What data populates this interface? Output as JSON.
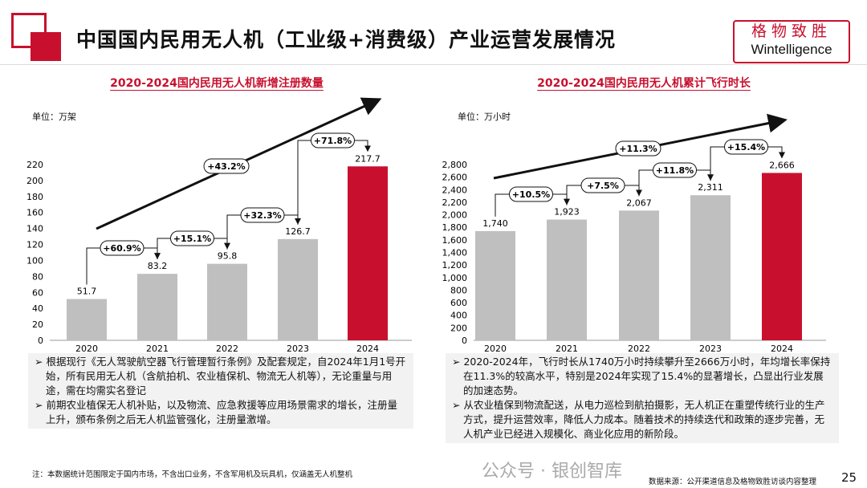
{
  "header": {
    "title": "中国国内民用无人机（工业级+消费级）产业运营发展情况",
    "logo_cn": "格物致胜",
    "logo_en": "Wintelligence"
  },
  "colors": {
    "accent": "#c8102e",
    "bar": "#bfbfbf"
  },
  "chart_data": [
    {
      "type": "bar",
      "title": "2020-2024国内民用无人机新增注册数量",
      "unit": "单位：万架",
      "categories": [
        "2020",
        "2021",
        "2022",
        "2023",
        "2024"
      ],
      "values": [
        51.7,
        83.2,
        95.8,
        126.7,
        217.7
      ],
      "labels": [
        "51.7",
        "83.2",
        "95.8",
        "126.7",
        "217.7"
      ],
      "ylim": [
        0,
        220
      ],
      "yticks": [
        0,
        20,
        40,
        60,
        80,
        100,
        120,
        140,
        160,
        180,
        200,
        220
      ],
      "growth": [
        "+60.9%",
        "+15.1%",
        "+32.3%",
        "+71.8%"
      ],
      "cagr": "+43.2%",
      "highlight": "2024"
    },
    {
      "type": "bar",
      "title": "2020-2024国内民用无人机累计飞行时长",
      "unit": "单位：万小时",
      "categories": [
        "2020",
        "2021",
        "2022",
        "2023",
        "2024"
      ],
      "values": [
        1740,
        1923,
        2067,
        2311,
        2666
      ],
      "labels": [
        "1,740",
        "1,923",
        "2,067",
        "2,311",
        "2,666"
      ],
      "ylim": [
        0,
        2800
      ],
      "yticks": [
        0,
        200,
        400,
        600,
        800,
        1000,
        1200,
        1400,
        1600,
        1800,
        2000,
        2200,
        2400,
        2600,
        2800
      ],
      "ytick_labels": [
        "0",
        "200",
        "400",
        "600",
        "800",
        "1,000",
        "1,200",
        "1,400",
        "1,600",
        "1,800",
        "2,000",
        "2,200",
        "2,400",
        "2,600",
        "2,800"
      ],
      "growth": [
        "+10.5%",
        "+7.5%",
        "+11.8%",
        "+15.4%"
      ],
      "cagr": "+11.3%",
      "highlight": "2024"
    }
  ],
  "left_notes": [
    "根据现行《无人驾驶航空器飞行管理暂行条例》及配套规定，自2024年1月1号开始，所有民用无人机（含航拍机、农业植保机、物流无人机等），无论重量与用途，需在均需实名登记",
    "前期农业植保无人机补贴，以及物流、应急救援等应用场景需求的增长，注册量上升，颁布条例之后无人机监管强化，注册量激增。"
  ],
  "right_notes": [
    "2020-2024年，飞行时长从1740万小时持续攀升至2666万小时，年均增长率保持在11.3%的较高水平，特别是2024年实现了15.4%的显著增长，凸显出行业发展的加速态势。",
    "从农业植保到物流配送，从电力巡检到航拍摄影，无人机正在重塑传统行业的生产方式，提升运营效率，降低人力成本。随着技术的持续迭代和政策的逐步完善，无人机产业已经进入规模化、商业化应用的新阶段。"
  ],
  "footnote": "注：本数据统计范围限定于国内市场，不含出口业务，不含军用机及玩具机，仅涵盖无人机整机",
  "source": "数据来源：公开渠道信息及格物致胜访谈内容整理",
  "watermark": "公众号 · 银创智库",
  "page_number": "25"
}
